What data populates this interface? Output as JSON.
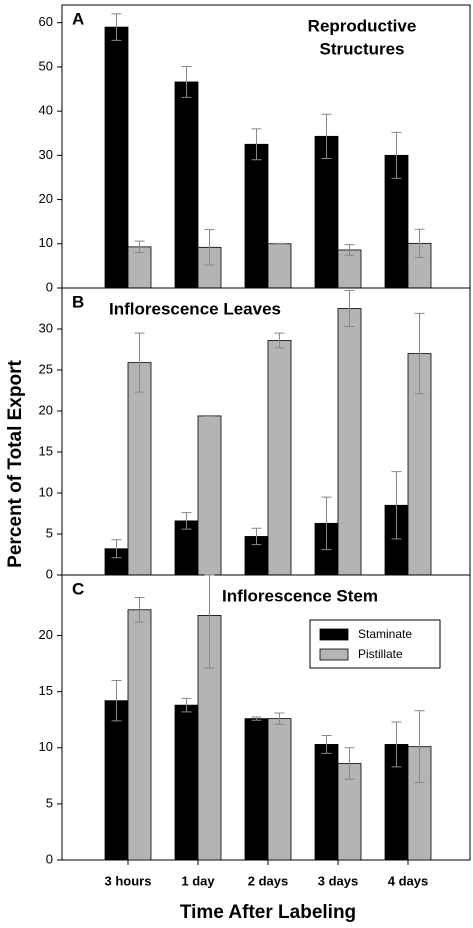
{
  "axis_labels": {
    "x": "Time After Labeling",
    "y": "Percent of Total Export"
  },
  "chart_data": [
    {
      "type": "bar",
      "panel": "A",
      "title": [
        "Reproductive",
        "Structures"
      ],
      "ylim": [
        0,
        64
      ],
      "yticks": [
        0,
        10,
        20,
        30,
        40,
        50,
        60
      ],
      "series": [
        {
          "name": "Staminate",
          "color": "#000000",
          "values": [
            59,
            46.6,
            32.5,
            34.3,
            30
          ],
          "errors": [
            3,
            3.5,
            3.5,
            5,
            5.2
          ]
        },
        {
          "name": "Pistillate",
          "color": "#b4b4b4",
          "values": [
            9.3,
            9.2,
            10,
            8.6,
            10.1
          ],
          "errors": [
            1.3,
            4,
            0.1,
            1.2,
            3.2
          ]
        }
      ]
    },
    {
      "type": "bar",
      "panel": "B",
      "title": [
        "Inflorescence Leaves"
      ],
      "ylim": [
        0,
        35
      ],
      "yticks": [
        0,
        5,
        10,
        15,
        20,
        25,
        30
      ],
      "series": [
        {
          "name": "Staminate",
          "color": "#000000",
          "values": [
            3.2,
            6.6,
            4.7,
            6.3,
            8.5
          ],
          "errors": [
            1.1,
            1.0,
            1.0,
            3.2,
            4.1
          ]
        },
        {
          "name": "Pistillate",
          "color": "#b4b4b4",
          "values": [
            25.9,
            19.4,
            28.6,
            32.5,
            27
          ],
          "errors": [
            3.6,
            0.05,
            0.9,
            2.2,
            4.9
          ]
        }
      ]
    },
    {
      "type": "bar",
      "panel": "C",
      "title": [
        "Inflorescence Stem"
      ],
      "legend": "upper right",
      "categories": [
        "3 hours",
        "1 day",
        "2 days",
        "3 days",
        "4 days"
      ],
      "ylim": [
        0,
        25.4
      ],
      "yticks": [
        0,
        5,
        10,
        15,
        20
      ],
      "series": [
        {
          "name": "Staminate",
          "color": "#000000",
          "values": [
            14.2,
            13.8,
            12.6,
            10.3,
            10.3
          ],
          "errors": [
            1.8,
            0.6,
            0.15,
            0.8,
            2.0
          ]
        },
        {
          "name": "Pistillate",
          "color": "#b4b4b4",
          "values": [
            22.3,
            21.8,
            12.6,
            8.6,
            10.1
          ],
          "errors": [
            1.1,
            4.7,
            0.5,
            1.4,
            3.2
          ]
        }
      ]
    }
  ]
}
